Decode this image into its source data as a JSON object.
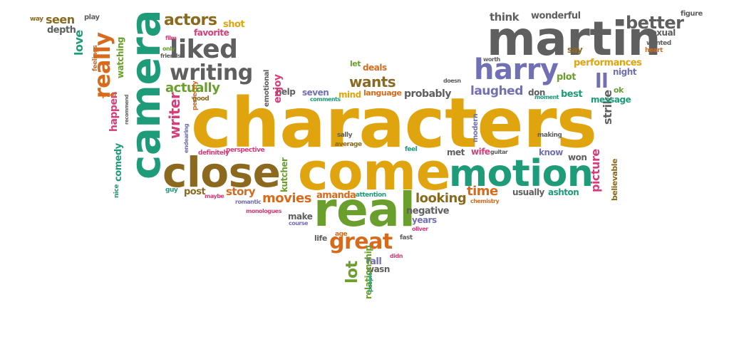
{
  "palette": {
    "gold": "#E0A40E",
    "teal": "#1E9C7A",
    "orange": "#D86A1B",
    "gray": "#5F5F5F",
    "purple": "#7270B4",
    "pink": "#D83C7A",
    "olive": "#8B6A1F",
    "green": "#6A9F2E"
  },
  "words": [
    {
      "text": "characters",
      "color": "#E0A40E"
    },
    {
      "text": "come",
      "color": "#E0A40E"
    },
    {
      "text": "close",
      "color": "#8B6A1F"
    },
    {
      "text": "real",
      "color": "#6A9F2E"
    },
    {
      "text": "motion",
      "color": "#1E9C7A"
    },
    {
      "text": "camera",
      "color": "#1E9C7A"
    },
    {
      "text": "martin",
      "color": "#5F5F5F"
    },
    {
      "text": "harry",
      "color": "#7270B4"
    },
    {
      "text": "liked",
      "color": "#5F5F5F"
    },
    {
      "text": "writing",
      "color": "#5F5F5F"
    },
    {
      "text": "really",
      "color": "#D86A1B"
    },
    {
      "text": "great",
      "color": "#D86A1B"
    },
    {
      "text": "actors",
      "color": "#8B6A1F"
    },
    {
      "text": "actually",
      "color": "#6A9F2E"
    },
    {
      "text": "better",
      "color": "#5F5F5F"
    },
    {
      "text": "ll",
      "color": "#7270B4"
    },
    {
      "text": "wants",
      "color": "#8B6A1F"
    },
    {
      "text": "writer",
      "color": "#D83C7A"
    },
    {
      "text": "movies",
      "color": "#D86A1B"
    },
    {
      "text": "looking",
      "color": "#8B6A1F"
    },
    {
      "text": "time",
      "color": "#D86A1B"
    },
    {
      "text": "lot",
      "color": "#6A9F2E"
    },
    {
      "text": "story",
      "color": "#D86A1B"
    },
    {
      "text": "laughed",
      "color": "#7270B4"
    },
    {
      "text": "strike",
      "color": "#5F5F5F"
    },
    {
      "text": "picture",
      "color": "#D83C7A"
    },
    {
      "text": "plot",
      "color": "#6A9F2E"
    },
    {
      "text": "happen",
      "color": "#D83C7A"
    },
    {
      "text": "comedy",
      "color": "#1E9C7A"
    },
    {
      "text": "love",
      "color": "#1E9C7A"
    },
    {
      "text": "seen",
      "color": "#8B6A1F"
    },
    {
      "text": "depth",
      "color": "#5F5F5F"
    },
    {
      "text": "watching",
      "color": "#6A9F2E"
    },
    {
      "text": "think",
      "color": "#5F5F5F"
    },
    {
      "text": "wonderful",
      "color": "#5F5F5F"
    },
    {
      "text": "figure",
      "color": "#5F5F5F"
    },
    {
      "text": "sexual",
      "color": "#5F5F5F"
    },
    {
      "text": "say",
      "color": "#8B6A1F"
    },
    {
      "text": "performances",
      "color": "#E0A40E"
    },
    {
      "text": "night",
      "color": "#7270B4"
    },
    {
      "text": "ok",
      "color": "#6A9F2E"
    },
    {
      "text": "message",
      "color": "#1E9C7A"
    },
    {
      "text": "best",
      "color": "#1E9C7A"
    },
    {
      "text": "don",
      "color": "#5F5F5F"
    },
    {
      "text": "probably",
      "color": "#5F5F5F"
    },
    {
      "text": "language",
      "color": "#D86A1B"
    },
    {
      "text": "mind",
      "color": "#E0A40E"
    },
    {
      "text": "seven",
      "color": "#7270B4"
    },
    {
      "text": "help",
      "color": "#5F5F5F"
    },
    {
      "text": "enjoy",
      "color": "#D83C7A"
    },
    {
      "text": "emotional",
      "color": "#5F5F5F"
    },
    {
      "text": "deals",
      "color": "#D86A1B"
    },
    {
      "text": "let",
      "color": "#6A9F2E"
    },
    {
      "text": "favorite",
      "color": "#D83C7A"
    },
    {
      "text": "shot",
      "color": "#E0A40E"
    },
    {
      "text": "amanda",
      "color": "#D86A1B"
    },
    {
      "text": "kutcher",
      "color": "#6A9F2E"
    },
    {
      "text": "post",
      "color": "#8B6A1F"
    },
    {
      "text": "usually",
      "color": "#5F5F5F"
    },
    {
      "text": "ashton",
      "color": "#1E9C7A"
    },
    {
      "text": "negative",
      "color": "#5F5F5F"
    },
    {
      "text": "years",
      "color": "#7270B4"
    },
    {
      "text": "make",
      "color": "#5F5F5F"
    },
    {
      "text": "wife",
      "color": "#D83C7A"
    },
    {
      "text": "met",
      "color": "#5F5F5F"
    },
    {
      "text": "modern",
      "color": "#7270B4"
    },
    {
      "text": "know",
      "color": "#7270B4"
    },
    {
      "text": "won",
      "color": "#5F5F5F"
    },
    {
      "text": "believable",
      "color": "#8B6A1F"
    },
    {
      "text": "fall",
      "color": "#7270B4"
    },
    {
      "text": "wasn",
      "color": "#5F5F5F"
    },
    {
      "text": "relationship",
      "color": "#6A9F2E"
    },
    {
      "text": "life",
      "color": "#5F5F5F"
    },
    {
      "text": "play",
      "color": "#5F5F5F"
    },
    {
      "text": "way",
      "color": "#8B6A1F"
    },
    {
      "text": "wanted",
      "color": "#5F5F5F"
    },
    {
      "text": "heart",
      "color": "#D86A1B"
    },
    {
      "text": "worth",
      "color": "#5F5F5F"
    },
    {
      "text": "feelings",
      "color": "#D86A1B"
    },
    {
      "text": "feel",
      "color": "#1E9C7A"
    },
    {
      "text": "making",
      "color": "#5F5F5F"
    },
    {
      "text": "guitar",
      "color": "#5F5F5F"
    },
    {
      "text": "moment",
      "color": "#1E9C7A"
    },
    {
      "text": "doesn",
      "color": "#5F5F5F"
    },
    {
      "text": "sally",
      "color": "#5F5F5F"
    },
    {
      "text": "average",
      "color": "#8B6A1F"
    },
    {
      "text": "perspective",
      "color": "#D83C7A"
    },
    {
      "text": "definitely",
      "color": "#D83C7A"
    },
    {
      "text": "endearing",
      "color": "#7270B4"
    },
    {
      "text": "perfectly",
      "color": "#D86A1B"
    },
    {
      "text": "good",
      "color": "#8B6A1F"
    },
    {
      "text": "comments",
      "color": "#1E9C7A"
    },
    {
      "text": "attention",
      "color": "#1E9C7A"
    },
    {
      "text": "romantic",
      "color": "#7270B4"
    },
    {
      "text": "maybe",
      "color": "#D83C7A"
    },
    {
      "text": "monologues",
      "color": "#D83C7A"
    },
    {
      "text": "course",
      "color": "#7270B4"
    },
    {
      "text": "chemistry",
      "color": "#D86A1B"
    },
    {
      "text": "oliver",
      "color": "#D83C7A"
    },
    {
      "text": "fast",
      "color": "#5F5F5F"
    },
    {
      "text": "age",
      "color": "#D86A1B"
    },
    {
      "text": "didn",
      "color": "#D83C7A"
    },
    {
      "text": "people",
      "color": "#1E9C7A"
    },
    {
      "text": "guy",
      "color": "#1E9C7A"
    },
    {
      "text": "nice",
      "color": "#1E9C7A"
    },
    {
      "text": "recommend",
      "color": "#5F5F5F"
    },
    {
      "text": "peel",
      "color": "#D86A1B"
    },
    {
      "text": "film",
      "color": "#D83C7A"
    },
    {
      "text": "only",
      "color": "#6A9F2E"
    },
    {
      "text": "friends",
      "color": "#5F5F5F"
    }
  ]
}
